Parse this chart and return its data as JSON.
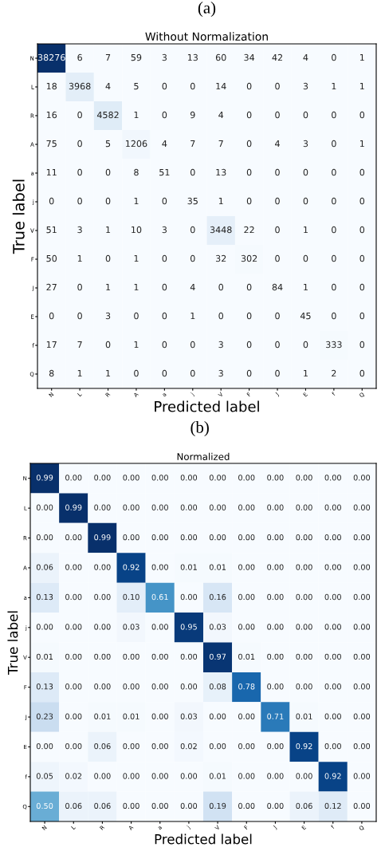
{
  "chart_data": [
    {
      "type": "heatmap",
      "title": "Without Normalization",
      "xlabel": "Predicted label",
      "ylabel": "True label",
      "annotations": [
        "(a)"
      ],
      "data_labels": true,
      "categories": [
        "N",
        "L",
        "R",
        "A",
        "a",
        "j",
        "V",
        "F",
        "J",
        "E",
        "f",
        "Q"
      ],
      "y_categories": [
        "N",
        "L",
        "R",
        "A",
        "a",
        "j",
        "V",
        "F",
        "J",
        "E",
        "f",
        "Q"
      ],
      "cells": [
        [
          38276,
          6,
          7,
          59,
          3,
          13,
          60,
          34,
          42,
          4,
          0,
          1
        ],
        [
          18,
          3968,
          4,
          5,
          0,
          0,
          14,
          0,
          0,
          3,
          1,
          1
        ],
        [
          16,
          0,
          4582,
          1,
          0,
          9,
          4,
          0,
          0,
          0,
          0,
          0
        ],
        [
          75,
          0,
          5,
          1206,
          4,
          7,
          7,
          0,
          4,
          3,
          0,
          1
        ],
        [
          11,
          0,
          0,
          8,
          51,
          0,
          13,
          0,
          0,
          0,
          0,
          0
        ],
        [
          0,
          0,
          0,
          1,
          0,
          35,
          1,
          0,
          0,
          0,
          0,
          0
        ],
        [
          51,
          3,
          1,
          10,
          3,
          0,
          3448,
          22,
          0,
          1,
          0,
          0
        ],
        [
          50,
          1,
          0,
          1,
          0,
          0,
          32,
          302,
          0,
          0,
          0,
          0
        ],
        [
          27,
          0,
          1,
          1,
          0,
          4,
          0,
          0,
          84,
          1,
          0,
          0
        ],
        [
          0,
          0,
          3,
          0,
          0,
          1,
          0,
          0,
          0,
          45,
          0,
          0
        ],
        [
          17,
          7,
          0,
          1,
          0,
          0,
          3,
          0,
          0,
          0,
          333,
          0
        ],
        [
          8,
          1,
          1,
          0,
          0,
          0,
          3,
          0,
          0,
          1,
          2,
          0
        ]
      ]
    },
    {
      "type": "heatmap",
      "title": "Normalized",
      "xlabel": "Predicted label",
      "ylabel": "True label",
      "annotations": [
        "(b)"
      ],
      "categories": [
        "N",
        "L",
        "R",
        "A",
        "a",
        "j",
        "V",
        "F",
        "J",
        "E",
        "f",
        "Q"
      ],
      "y_categories": [
        "N",
        "L",
        "R",
        "A",
        "a",
        "j",
        "V",
        "F",
        "J",
        "E",
        "f",
        "Q"
      ],
      "cells": [
        [
          0.99,
          0,
          0,
          0,
          0,
          0,
          0,
          0,
          0,
          0,
          0,
          0
        ],
        [
          0,
          0.99,
          0,
          0,
          0,
          0,
          0,
          0,
          0,
          0,
          0,
          0
        ],
        [
          0,
          0,
          0.99,
          0,
          0,
          0,
          0,
          0,
          0,
          0,
          0,
          0
        ],
        [
          0.06,
          0,
          0,
          0.92,
          0,
          0.01,
          0.01,
          0,
          0,
          0,
          0,
          0
        ],
        [
          0.13,
          0,
          0,
          0.1,
          0.61,
          0,
          0.16,
          0,
          0,
          0,
          0,
          0
        ],
        [
          0,
          0,
          0,
          0.03,
          0,
          0.95,
          0.03,
          0,
          0,
          0,
          0,
          0
        ],
        [
          0.01,
          0,
          0,
          0,
          0,
          0,
          0.97,
          0.01,
          0,
          0,
          0,
          0
        ],
        [
          0.13,
          0,
          0,
          0,
          0,
          0,
          0.08,
          0.78,
          0,
          0,
          0,
          0
        ],
        [
          0.23,
          0,
          0.01,
          0.01,
          0,
          0.03,
          0,
          0,
          0.71,
          0.01,
          0,
          0
        ],
        [
          0,
          0,
          0.06,
          0,
          0,
          0.02,
          0,
          0,
          0,
          0.92,
          0,
          0
        ],
        [
          0.05,
          0.02,
          0,
          0,
          0,
          0,
          0.01,
          0,
          0,
          0,
          0.92,
          0
        ],
        [
          0.5,
          0.06,
          0.06,
          0,
          0,
          0,
          0.19,
          0,
          0,
          0.06,
          0.12,
          0
        ]
      ],
      "cell_labels": [
        [
          "0.99",
          "0.00",
          "0.00",
          "0.00",
          "0.00",
          "0.00",
          "0.00",
          "0.00",
          "0.00",
          "0.00",
          "0.00",
          "0.00"
        ],
        [
          "0.00",
          "0.99",
          "0.00",
          "0.00",
          "0.00",
          "0.00",
          "0.00",
          "0.00",
          "0.00",
          "0.00",
          "0.00",
          "0.00"
        ],
        [
          "0.00",
          "0.00",
          "0.99",
          "0.00",
          "0.00",
          "0.00",
          "0.00",
          "0.00",
          "0.00",
          "0.00",
          "0.00",
          "0.00"
        ],
        [
          "0.06",
          "0.00",
          "0.00",
          "0.92",
          "0.00",
          "0.01",
          "0.01",
          "0.00",
          "0.00",
          "0.00",
          "0.00",
          "0.00"
        ],
        [
          "0.13",
          "0.00",
          "0.00",
          "0.10",
          "0.61",
          "0.00",
          "0.16",
          "0.00",
          "0.00",
          "0.00",
          "0.00",
          "0.00"
        ],
        [
          "0.00",
          "0.00",
          "0.00",
          "0.03",
          "0.00",
          "0.95",
          "0.03",
          "0.00",
          "0.00",
          "0.00",
          "0.00",
          "0.00"
        ],
        [
          "0.01",
          "0.00",
          "0.00",
          "0.00",
          "0.00",
          "0.00",
          "0.97",
          "0.01",
          "0.00",
          "0.00",
          "0.00",
          "0.00"
        ],
        [
          "0.13",
          "0.00",
          "0.00",
          "0.00",
          "0.00",
          "0.00",
          "0.08",
          "0.78",
          "0.00",
          "0.00",
          "0.00",
          "0.00"
        ],
        [
          "0.23",
          "0.00",
          "0.01",
          "0.01",
          "0.00",
          "0.03",
          "0.00",
          "0.00",
          "0.71",
          "0.01",
          "0.00",
          "0.00"
        ],
        [
          "0.00",
          "0.00",
          "0.06",
          "0.00",
          "0.00",
          "0.02",
          "0.00",
          "0.00",
          "0.00",
          "0.92",
          "0.00",
          "0.00"
        ],
        [
          "0.05",
          "0.02",
          "0.00",
          "0.00",
          "0.00",
          "0.00",
          "0.01",
          "0.00",
          "0.00",
          "0.00",
          "0.92",
          "0.00"
        ],
        [
          "0.50",
          "0.06",
          "0.06",
          "0.00",
          "0.00",
          "0.00",
          "0.19",
          "0.00",
          "0.00",
          "0.06",
          "0.12",
          "0.00"
        ]
      ]
    }
  ]
}
